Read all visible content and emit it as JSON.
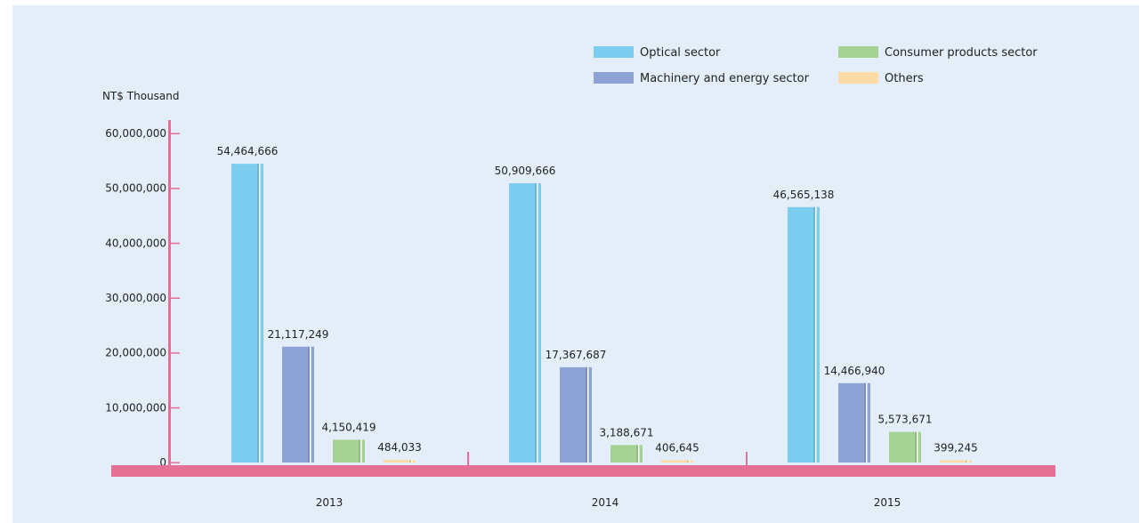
{
  "chart_data": {
    "type": "bar",
    "ylabel": "NT$ Thousand",
    "ylim": [
      0,
      60000000
    ],
    "yticks": [
      {
        "value": 0,
        "label": "0"
      },
      {
        "value": 10000000,
        "label": "10,000,000"
      },
      {
        "value": 20000000,
        "label": "20,000,000"
      },
      {
        "value": 30000000,
        "label": "30,000,000"
      },
      {
        "value": 40000000,
        "label": "40,000,000"
      },
      {
        "value": 50000000,
        "label": "50,000,000"
      },
      {
        "value": 60000000,
        "label": "60,000,000"
      }
    ],
    "categories": [
      "2013",
      "2014",
      "2015"
    ],
    "legend_placement": "top-right",
    "grid": false,
    "series": [
      {
        "name": "Optical sector",
        "color": "#7dcdf0",
        "values": [
          54464666,
          50909666,
          46565138
        ],
        "labels": [
          "54,464,666",
          "50,909,666",
          "46,565,138"
        ]
      },
      {
        "name": "Machinery and energy sector",
        "color": "#8da3d6",
        "values": [
          21117249,
          17367687,
          14466940
        ],
        "labels": [
          "21,117,249",
          "17,367,687",
          "14,466,940"
        ]
      },
      {
        "name": "Consumer products sector",
        "color": "#a6d394",
        "values": [
          4150419,
          3188671,
          5573671
        ],
        "labels": [
          "4,150,419",
          "3,188,671",
          "5,573,671"
        ]
      },
      {
        "name": "Others",
        "color": "#fcdba6",
        "values": [
          484033,
          406645,
          399245
        ],
        "labels": [
          "484,033",
          "406,645",
          "399,245"
        ]
      }
    ],
    "axis_color": "#e56f95"
  }
}
